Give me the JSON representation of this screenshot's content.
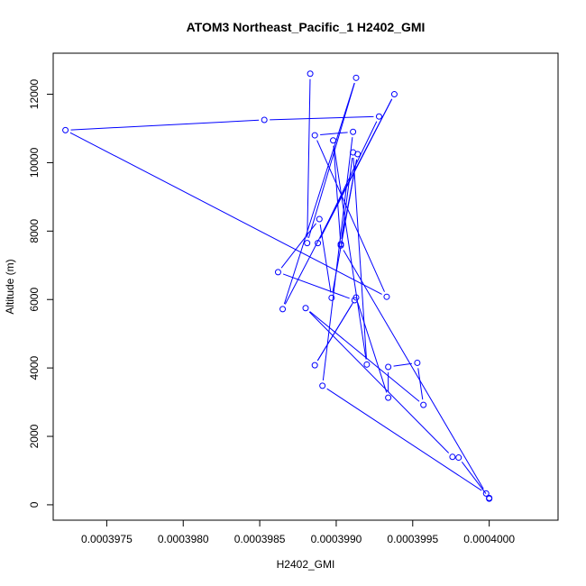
{
  "chart_data": {
    "type": "line",
    "title": "ATOM3 Northeast_Pacific_1 H2402_GMI",
    "xlabel": "H2402_GMI",
    "ylabel": "Altitude (m)",
    "xlim": [
      0.00039715,
      0.00040045
    ],
    "ylim": [
      -450,
      13200
    ],
    "xticks": [
      {
        "value": 0.0003975,
        "label": "0.0003975"
      },
      {
        "value": 0.000398,
        "label": "0.0003980"
      },
      {
        "value": 0.0003985,
        "label": "0.0003985"
      },
      {
        "value": 0.000399,
        "label": "0.0003990"
      },
      {
        "value": 0.0003995,
        "label": "0.0003995"
      },
      {
        "value": 0.0004,
        "label": "0.0004000"
      }
    ],
    "yticks": [
      {
        "value": 0,
        "label": "0"
      },
      {
        "value": 2000,
        "label": "2000"
      },
      {
        "value": 4000,
        "label": "4000"
      },
      {
        "value": 6000,
        "label": "6000"
      },
      {
        "value": 8000,
        "label": "8000"
      },
      {
        "value": 10000,
        "label": "10000"
      },
      {
        "value": 12000,
        "label": "12000"
      }
    ],
    "color": "#0000ff",
    "series": [
      {
        "points": [
          {
            "x": 0.00039883,
            "y": 12600
          },
          {
            "x": 0.00039881,
            "y": 7650
          },
          {
            "x": 0.00039913,
            "y": 12480
          },
          {
            "x": 0.00039865,
            "y": 5720
          },
          {
            "x": 0.00039938,
            "y": 12000
          },
          {
            "x": 0.00039888,
            "y": 7650
          },
          {
            "x": 0.00039928,
            "y": 11350
          },
          {
            "x": 0.00039853,
            "y": 11250
          },
          {
            "x": 0.00039723,
            "y": 10950
          },
          {
            "x": 0.00039933,
            "y": 6080
          },
          {
            "x": 0.00039886,
            "y": 10800
          },
          {
            "x": 0.00039911,
            "y": 10900
          },
          {
            "x": 0.00039891,
            "y": 3480
          },
          {
            "x": 0.00039998,
            "y": 330
          },
          {
            "x": 0.00039903,
            "y": 7580
          },
          {
            "x": 0.00039898,
            "y": 10650
          },
          {
            "x": 0.0003992,
            "y": 4100
          },
          {
            "x": 0.00039911,
            "y": 10300
          },
          {
            "x": 0.00039903,
            "y": 7620
          },
          {
            "x": 0.00039914,
            "y": 10250
          },
          {
            "x": 0.00039897,
            "y": 6050
          },
          {
            "x": 0.00039889,
            "y": 8350
          },
          {
            "x": 0.00039862,
            "y": 6800
          },
          {
            "x": 0.00039912,
            "y": 5980
          },
          {
            "x": 0.00039886,
            "y": 4080
          },
          {
            "x": 0.00039913,
            "y": 6060
          },
          {
            "x": 0.00039934,
            "y": 3130
          },
          {
            "x": 0.00039934,
            "y": 4030
          },
          {
            "x": 0.00039953,
            "y": 4150
          },
          {
            "x": 0.00039957,
            "y": 2920
          },
          {
            "x": 0.0003988,
            "y": 5750
          },
          {
            "x": 0.00039976,
            "y": 1400
          },
          {
            "x": 0.0003998,
            "y": 1380
          },
          {
            "x": 0.0004,
            "y": 200
          },
          {
            "x": 0.0004,
            "y": 180
          }
        ]
      }
    ]
  }
}
